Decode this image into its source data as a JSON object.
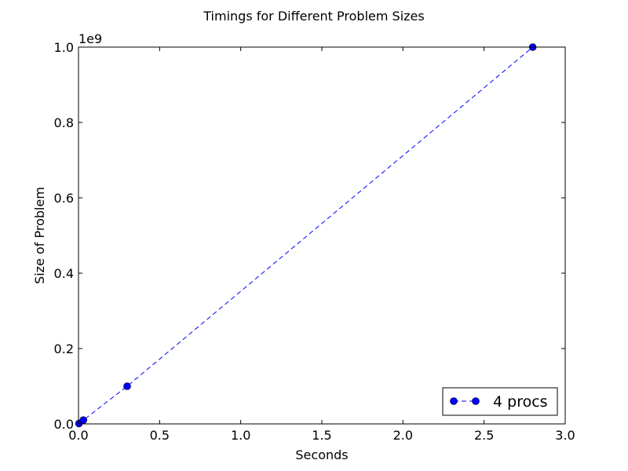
{
  "chart_data": {
    "type": "line",
    "title": "Timings for Different Problem Sizes",
    "xlabel": "Seconds",
    "ylabel": "Size of Problem",
    "xlim": [
      0,
      3.0
    ],
    "ylim": [
      0,
      1.0
    ],
    "y_offset_label": "1e9",
    "x_ticks": [
      "0.0",
      "0.5",
      "1.0",
      "1.5",
      "2.0",
      "2.5",
      "3.0"
    ],
    "y_ticks": [
      "0.0",
      "0.2",
      "0.4",
      "0.6",
      "0.8",
      "1.0"
    ],
    "grid": false,
    "legend_position": "lower-right",
    "series": [
      {
        "name": "4 procs",
        "color": "#0000ff",
        "line_style": "dashed",
        "marker": "circle",
        "x": [
          0.003,
          0.03,
          0.3,
          2.8
        ],
        "y": [
          0.001,
          0.01,
          0.1,
          1.0
        ]
      }
    ]
  }
}
